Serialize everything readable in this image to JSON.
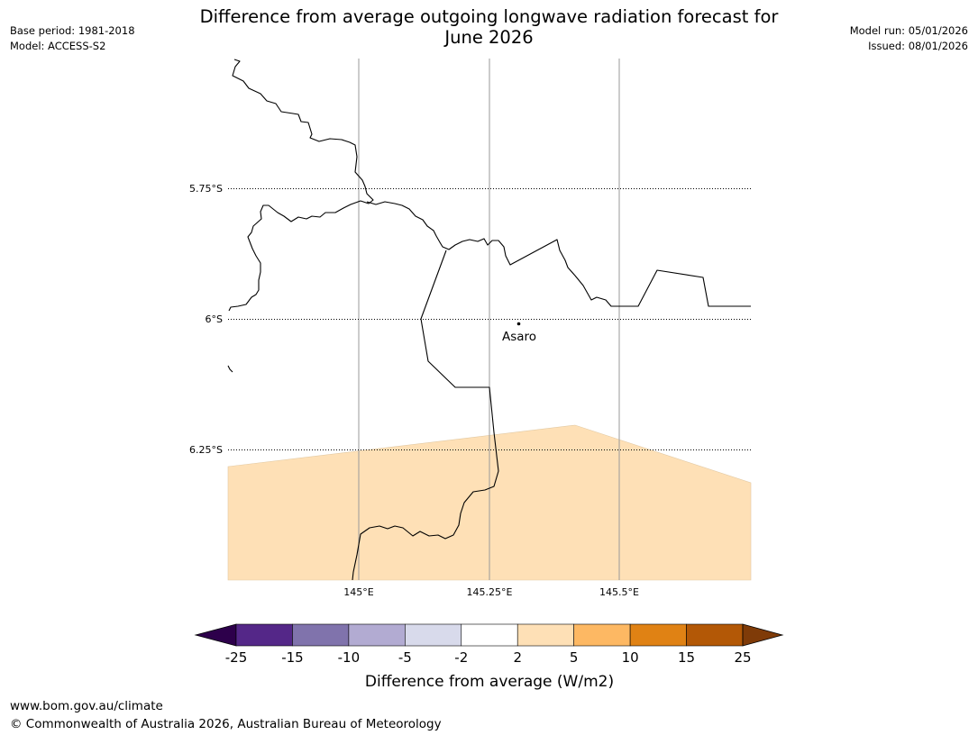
{
  "header": {
    "title_line1": "Difference from average outgoing longwave radiation forecast for",
    "title_line2": "June 2026",
    "base_period": "Base period: 1981-2018",
    "model": "Model: ACCESS-S2",
    "model_run": "Model run: 05/01/2026",
    "issued": "Issued: 08/01/2026"
  },
  "map": {
    "lat_labels": [
      "5.75°S",
      "6°S",
      "6.25°S"
    ],
    "lon_labels": [
      "145°E",
      "145.25°E",
      "145.5°E"
    ],
    "place": {
      "name": "Asaro"
    },
    "anomaly_region_category": "2 to 5"
  },
  "legend": {
    "title": "Difference from average (W/m2)",
    "ticks": [
      "-25",
      "-15",
      "-10",
      "-5",
      "-2",
      "2",
      "5",
      "10",
      "15",
      "25"
    ],
    "colors": {
      "below_min": "#2d004b",
      "bins": [
        "#542788",
        "#8073ac",
        "#b2abd2",
        "#d8daeb",
        "#ffffff",
        "#fee0b6",
        "#fdb863",
        "#e08214",
        "#b35806"
      ],
      "above_max": "#7f3b08"
    }
  },
  "footer": {
    "url": "www.bom.gov.au/climate",
    "copyright": "© Commonwealth of Australia 2026, Australian Bureau of Meteorology"
  }
}
